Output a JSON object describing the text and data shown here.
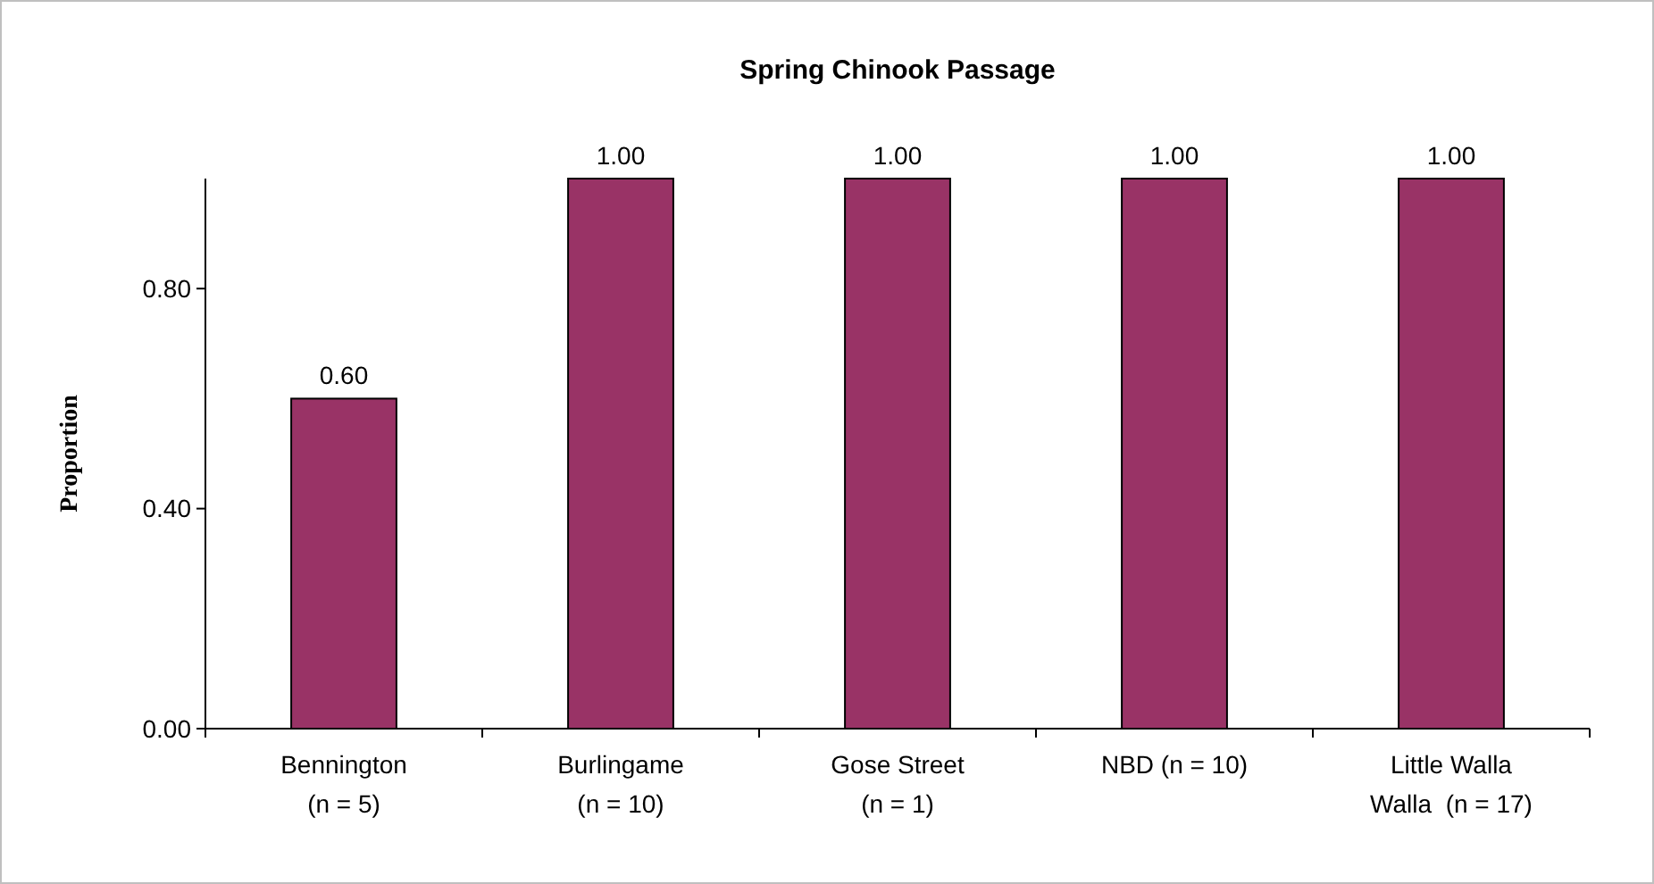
{
  "chart_data": {
    "type": "bar",
    "title": "Spring Chinook Passage",
    "ylabel": "Proportion",
    "categories": [
      "Bennington\n(n = 5)",
      "Burlingame\n(n = 10)",
      "Gose Street\n(n = 1)",
      "NBD (n = 10)",
      "Little Walla\nWalla  (n = 17)"
    ],
    "values": [
      0.6,
      1.0,
      1.0,
      1.0,
      1.0
    ],
    "color": "#993366",
    "value_labels": [
      "0.60",
      "1.00",
      "1.00",
      "1.00",
      "1.00"
    ],
    "ylim": [
      0,
      1
    ],
    "yticks": [
      {
        "value": 0,
        "label": "0.00"
      },
      {
        "value": 0.4,
        "label": "0.40"
      },
      {
        "value": 0.8,
        "label": "0.80"
      }
    ],
    "grid": false
  }
}
